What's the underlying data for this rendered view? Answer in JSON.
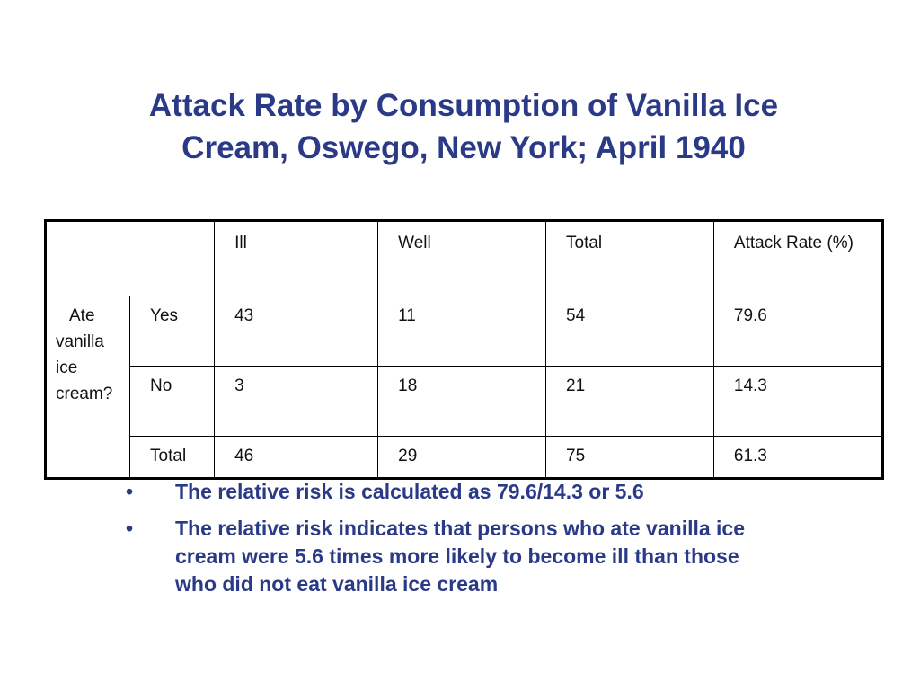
{
  "title": {
    "line1": "Attack Rate by Consumption of Vanilla Ice",
    "line2": "Cream, Oswego, New York; April 1940"
  },
  "table": {
    "headers": {
      "ill": "Ill",
      "well": "Well",
      "total": "Total",
      "attack_rate": "Attack Rate (%)"
    },
    "row_group_label": "Ate vanilla ice cream?",
    "rows": [
      {
        "label": "Yes",
        "ill": "43",
        "well": "11",
        "total": "54",
        "attack_rate": "79.6"
      },
      {
        "label": "No",
        "ill": "3",
        "well": "18",
        "total": "21",
        "attack_rate": "14.3"
      },
      {
        "label": "Total",
        "ill": "46",
        "well": "29",
        "total": "75",
        "attack_rate": "61.3"
      }
    ]
  },
  "bullets": [
    {
      "marker": "•",
      "text": "The relative risk is calculated as 79.6/14.3 or 5.6"
    },
    {
      "marker": "•",
      "text": "The relative risk indicates that persons who ate vanilla ice cream were 5.6 times more likely to become ill than those who did not eat vanilla ice cream"
    }
  ],
  "colors": {
    "heading_and_bullets": "#2b3a87",
    "table_text": "#111111",
    "table_border": "#000000"
  }
}
